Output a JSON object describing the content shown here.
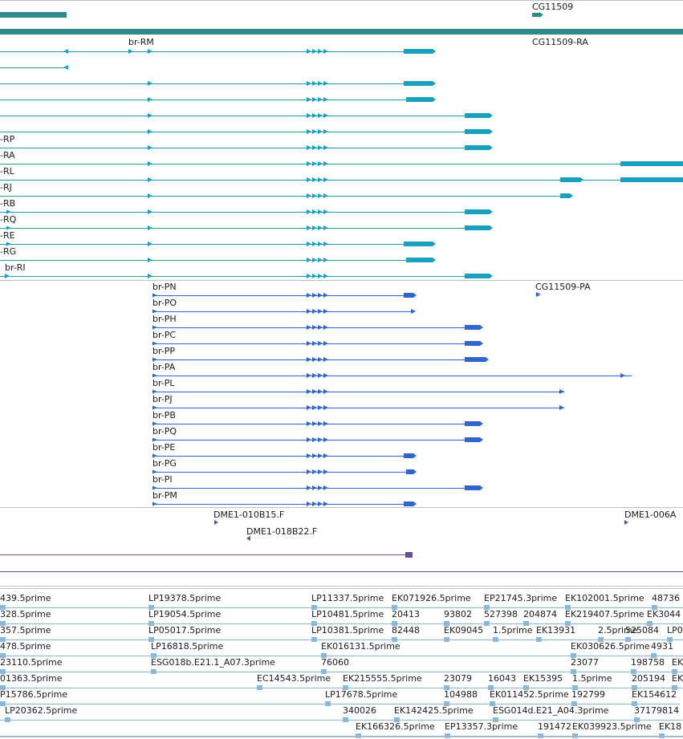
{
  "colors": {
    "gene_track": "#318a8a",
    "transcript": "#1aa0bf",
    "protein": "#3366cc",
    "clone": "#6a4a9c",
    "est": "#8ab8d8",
    "divider": "#bfbfbf"
  },
  "gene_track": {
    "label": "CG11509"
  },
  "transcripts": {
    "left_labels": [
      "-RP",
      "-RA",
      "-RL",
      "-RJ",
      "-RB",
      "-RQ",
      "-RE",
      "-RG"
    ],
    "top_label": "br-RM",
    "bottom_label": "br-RI",
    "right_label": "CG11509-RA"
  },
  "proteins": {
    "labels": [
      "br-PN",
      "br-PO",
      "br-PH",
      "br-PC",
      "br-PP",
      "br-PA",
      "br-PL",
      "br-PJ",
      "br-PB",
      "br-PQ",
      "br-PE",
      "br-PG",
      "br-PI",
      "br-PM"
    ],
    "right_label": "CG11509-PA"
  },
  "clones": {
    "labels": [
      "DME1-010B15.F",
      "DME1-018B22.F",
      "DME1-006A"
    ]
  },
  "ests": {
    "rows": [
      [
        "439.5prime",
        "LP19378.5prime",
        "LP11337.5prime",
        "EK071926.5prime",
        "EP21745.3prime",
        "EK102001.5prime",
        "48736"
      ],
      [
        "328.5prime",
        "LP19054.5prime",
        "LP10481.5prime",
        "20413",
        "93802",
        "527398",
        "204874",
        "EK219407.5prime",
        "EK3044"
      ],
      [
        "357.5prime",
        "LP05017.5prime",
        "LP10381.5prime",
        "82448",
        "EK09045",
        "1.5prime",
        "EK13931",
        "2.5prime",
        "525084",
        "LP0"
      ],
      [
        "478.5prime",
        "LP16818.5prime",
        "EK016131.5prime",
        "EK030626.5prime",
        "4931"
      ],
      [
        "23110.5prime",
        "ESG018b.E21.1_A07.3prime",
        "76060",
        "23077",
        "198758",
        "EK"
      ],
      [
        "01363.5prime",
        "EC14543.5prime",
        "EK215555.5prime",
        "23079",
        "16043",
        "EK15395",
        "1.5prime",
        "205194",
        "EK"
      ],
      [
        "P15786.5prime",
        "LP17678.5prime",
        "104988",
        "EK011452.5prime",
        "192799",
        "EK154612"
      ],
      [
        "LP20362.5prime",
        "340026",
        "EK142425.5prime",
        "ESG014d.E21_A04.3prime",
        "37179814"
      ],
      [
        "EK166326.5prime",
        "EP13357.3prime",
        "191472",
        "EK039923.5prime",
        "EK18"
      ]
    ]
  }
}
